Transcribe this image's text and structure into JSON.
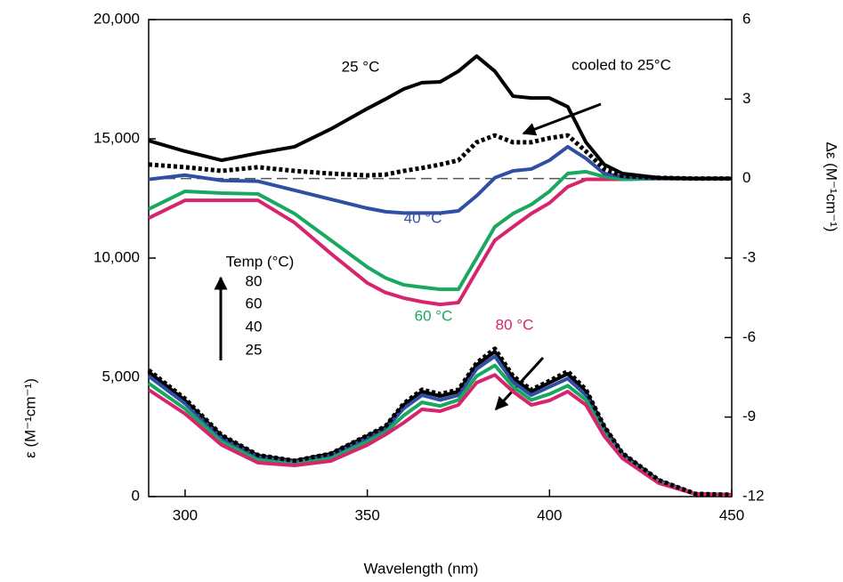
{
  "chart_data": {
    "type": "line",
    "xlabel": "Wavelength (nm)",
    "ylabel": "ε (M⁻¹cm⁻¹)",
    "y2label": "Δε (M⁻¹cm⁻¹)",
    "xlim": [
      290,
      450
    ],
    "xticks": [
      300,
      350,
      400,
      450
    ],
    "ylim": [
      0,
      20000
    ],
    "yticks": [
      0,
      {
        "value": 5000,
        "label": "5,000"
      },
      {
        "value": 10000,
        "label": "10,000"
      },
      {
        "value": 15000,
        "label": "15,000"
      },
      {
        "value": 20000,
        "label": "20,000"
      }
    ],
    "y2lim": [
      -12,
      6
    ],
    "y2ticks": [
      -12,
      -9,
      -6,
      -3,
      0,
      3,
      6
    ],
    "zero_line": true,
    "x": [
      290,
      300,
      310,
      320,
      330,
      340,
      350,
      355,
      360,
      365,
      370,
      375,
      380,
      385,
      390,
      395,
      400,
      405,
      410,
      415,
      420,
      430,
      440,
      450
    ],
    "series": [
      {
        "color": "#000000",
        "linestyle": "solid",
        "values": [
          5224,
          4030,
          2537,
          1716,
          1492,
          1791,
          2537,
          2910,
          3843,
          4403,
          4216,
          4403,
          5522,
          6082,
          4963,
          4403,
          4776,
          5149,
          4403,
          2910,
          1791,
          672,
          112,
          75
        ]
      },
      {
        "color": "#2e4fa3",
        "linestyle": "solid",
        "values": [
          5050,
          3900,
          2450,
          1650,
          1450,
          1720,
          2450,
          2830,
          3700,
          4250,
          4050,
          4250,
          5350,
          5880,
          4800,
          4250,
          4600,
          4950,
          4250,
          2800,
          1720,
          640,
          110,
          75
        ]
      },
      {
        "color": "#1aa860",
        "linestyle": "solid",
        "values": [
          4750,
          3680,
          2300,
          1530,
          1380,
          1600,
          2300,
          2700,
          3400,
          3950,
          3800,
          4050,
          5050,
          5500,
          4600,
          4050,
          4300,
          4650,
          4050,
          2650,
          1660,
          600,
          110,
          75
        ]
      },
      {
        "color": "#d6246e",
        "linestyle": "solid",
        "values": [
          4478,
          3470,
          2164,
          1418,
          1306,
          1492,
          2164,
          2600,
          3097,
          3657,
          3582,
          3843,
          4776,
          5100,
          4403,
          3843,
          4030,
          4403,
          3843,
          2537,
          1604,
          560,
          112,
          75
        ]
      },
      {
        "color": "#000000",
        "linestyle": "dotted",
        "values": [
          5300,
          4100,
          2580,
          1740,
          1500,
          1800,
          2560,
          2950,
          3900,
          4480,
          4300,
          4480,
          5600,
          6200,
          5050,
          4480,
          4850,
          5250,
          4480,
          2950,
          1820,
          690,
          115,
          75
        ]
      },
      {
        "color": "#d6246e",
        "linestyle": "solid",
        "axis": "y2",
        "values": [
          -1.49,
          -0.82,
          -0.82,
          -0.82,
          -1.66,
          -2.83,
          -3.94,
          -4.3,
          -4.51,
          -4.65,
          -4.75,
          -4.68,
          -3.5,
          -2.33,
          -1.82,
          -1.32,
          -0.92,
          -0.31,
          -0.03,
          -0.03,
          -0.03,
          0,
          0,
          0
        ]
      },
      {
        "color": "#1aa860",
        "linestyle": "solid",
        "axis": "y2",
        "values": [
          -1.15,
          -0.48,
          -0.55,
          -0.58,
          -1.32,
          -2.33,
          -3.34,
          -3.75,
          -4.01,
          -4.1,
          -4.18,
          -4.18,
          -3.0,
          -1.82,
          -1.32,
          -0.98,
          -0.48,
          0.19,
          0.26,
          0.07,
          -0.03,
          0,
          0,
          0
        ]
      },
      {
        "color": "#2e4fa3",
        "linestyle": "solid",
        "axis": "y2",
        "values": [
          -0.03,
          0.13,
          -0.07,
          -0.1,
          -0.44,
          -0.78,
          -1.12,
          -1.25,
          -1.3,
          -1.3,
          -1.3,
          -1.22,
          -0.65,
          0.03,
          0.29,
          0.36,
          0.69,
          1.2,
          0.76,
          0.19,
          0.07,
          0,
          0,
          0
        ]
      },
      {
        "color": "#000000",
        "linestyle": "dotted",
        "axis": "y2",
        "values": [
          0.53,
          0.43,
          0.29,
          0.43,
          0.29,
          0.19,
          0.12,
          0.15,
          0.29,
          0.4,
          0.53,
          0.69,
          1.37,
          1.63,
          1.37,
          1.37,
          1.53,
          1.63,
          1.03,
          0.36,
          0.1,
          0.03,
          0,
          0
        ]
      },
      {
        "color": "#000000",
        "linestyle": "solid",
        "axis": "y2",
        "values": [
          1.43,
          1.03,
          0.69,
          0.96,
          1.2,
          1.87,
          2.64,
          3.0,
          3.38,
          3.62,
          3.65,
          4.05,
          4.62,
          4.05,
          3.11,
          3.04,
          3.04,
          2.71,
          1.37,
          0.53,
          0.19,
          0.03,
          0,
          0
        ]
      }
    ],
    "annotations": [
      {
        "text": "25 °C",
        "color": "#000000"
      },
      {
        "text": "cooled to 25°C",
        "color": "#000000"
      },
      {
        "text": "40 °C",
        "color": "#2e4fa3"
      },
      {
        "text": "60 °C",
        "color": "#1aa860"
      },
      {
        "text": "80 °C",
        "color": "#d6246e"
      },
      {
        "text": "Temp (°C)",
        "color": "#000000"
      },
      {
        "text": "80",
        "color": "#000000"
      },
      {
        "text": "60",
        "color": "#000000"
      },
      {
        "text": "40",
        "color": "#000000"
      },
      {
        "text": "25",
        "color": "#000000"
      }
    ]
  }
}
